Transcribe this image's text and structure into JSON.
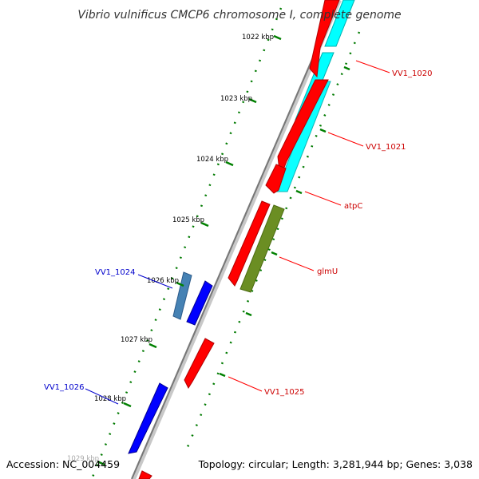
{
  "title": "Vibrio vulnificus CMCP6 chromosome I, complete genome",
  "accession": "Accession: NC_004459",
  "summary": "Topology: circular; Length: 3,281,944 bp; Genes: 3,038",
  "ticks": [
    "1022 kbp",
    "1023 kbp",
    "1024 kbp",
    "1025 kbp",
    "1026 kbp",
    "1027 kbp",
    "1028 kbp",
    "1029 kbp"
  ],
  "gene_labels": [
    "VV1_1020",
    "VV1_1021",
    "atpC",
    "glmU",
    "VV1_1024",
    "VV1_1025",
    "VV1_1026"
  ],
  "colors": {
    "forward_gene": "#ff0000",
    "reverse_gene": "#0000ff",
    "cyan_feature": "#00ffff",
    "olive_feature": "#6b8e23",
    "steel_feature": "#4682b4",
    "tick_mark": "#008000",
    "backbone": "#888888",
    "label_forward": "#cc0000",
    "label_reverse": "#0000cc"
  }
}
